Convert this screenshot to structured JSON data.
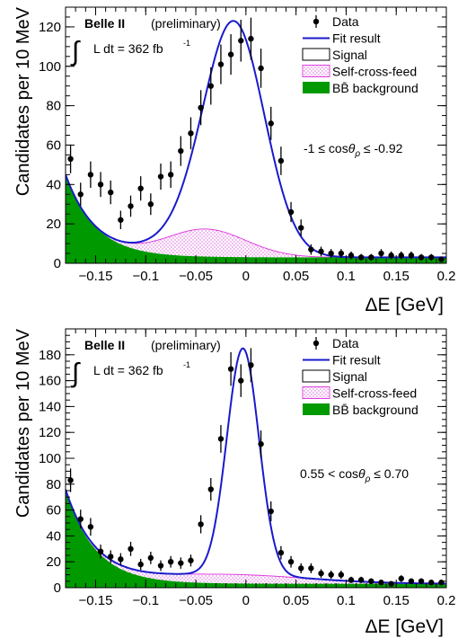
{
  "chart_data": [
    {
      "type": "scatter",
      "experiment": "Belle II",
      "status": "(preliminary)",
      "lumi_prefix": "L dt = 362 fb",
      "lumi_sup": "-1",
      "selection": "-1 ≤ cosθρ ≤ -0.92",
      "selection_parts": {
        "pre": "-1 ≤ cos",
        "theta": "θ",
        "sub": "ρ",
        "post": " ≤ -0.92"
      },
      "xlabel": "ΔE [GeV]",
      "ylabel": "Candidates per 10 MeV",
      "xlim": [
        -0.18,
        0.2
      ],
      "ylim": [
        0,
        130
      ],
      "x_ticks": [
        -0.15,
        -0.1,
        -0.05,
        0,
        0.05,
        0.1,
        0.15,
        0.2
      ],
      "x_tick_labels": [
        "−0.15",
        "−0.1",
        "−0.05",
        "0",
        "0.05",
        "0.1",
        "0.15",
        "0.2"
      ],
      "y_ticks": [
        0,
        20,
        40,
        60,
        80,
        100,
        120
      ],
      "y_tick_labels": [
        "0",
        "20",
        "40",
        "60",
        "80",
        "100",
        "120"
      ],
      "legend": [
        "Data",
        "Fit result",
        "Signal",
        "Self-cross-feed",
        "BB̄ background"
      ],
      "legend_placement": "top-right",
      "colors": {
        "fit": "#1a1acc",
        "scf": "#e040e0",
        "bb": "#009900",
        "data": "#000000"
      },
      "data_points": {
        "x": [
          -0.175,
          -0.165,
          -0.155,
          -0.145,
          -0.135,
          -0.125,
          -0.115,
          -0.105,
          -0.095,
          -0.085,
          -0.075,
          -0.065,
          -0.055,
          -0.045,
          -0.035,
          -0.025,
          -0.015,
          -0.005,
          0.005,
          0.015,
          0.025,
          0.035,
          0.045,
          0.055,
          0.065,
          0.075,
          0.085,
          0.095,
          0.105,
          0.115,
          0.125,
          0.135,
          0.145,
          0.155,
          0.165,
          0.175,
          0.185,
          0.195
        ],
        "y": [
          53,
          35,
          45,
          40,
          36,
          22,
          29,
          38,
          30,
          44,
          45,
          57,
          66,
          79,
          90,
          101,
          106,
          113,
          114,
          99,
          71,
          52,
          26,
          18,
          7,
          6,
          5,
          5,
          4,
          3,
          3,
          5,
          4,
          4,
          4,
          3,
          3,
          2
        ]
      },
      "fit_params": {
        "sig_amp": 109,
        "sig_mu": -0.011,
        "sig_sigma": 0.03,
        "scf_amp": 14,
        "scf_mu": -0.04,
        "scf_sigma": 0.04,
        "bb_amp": 42,
        "bb_decay": 0.03,
        "bb_const": 3
      }
    },
    {
      "type": "scatter",
      "experiment": "Belle II",
      "status": "(preliminary)",
      "lumi_prefix": "L dt = 362 fb",
      "lumi_sup": "-1",
      "selection": "0.55 < cosθρ ≤ 0.70",
      "selection_parts": {
        "pre": "0.55 < cos",
        "theta": "θ",
        "sub": "ρ",
        "post": " ≤ 0.70"
      },
      "xlabel": "ΔE [GeV]",
      "ylabel": "Candidates per 10 MeV",
      "xlim": [
        -0.18,
        0.2
      ],
      "ylim": [
        0,
        200
      ],
      "x_ticks": [
        -0.15,
        -0.1,
        -0.05,
        0,
        0.05,
        0.1,
        0.15,
        0.2
      ],
      "x_tick_labels": [
        "−0.15",
        "−0.1",
        "−0.05",
        "0",
        "0.05",
        "0.1",
        "0.15",
        "0.2"
      ],
      "y_ticks": [
        0,
        20,
        40,
        60,
        80,
        100,
        120,
        140,
        160,
        180
      ],
      "y_tick_labels": [
        "0",
        "20",
        "40",
        "60",
        "80",
        "100",
        "120",
        "140",
        "160",
        "180"
      ],
      "legend": [
        "Data",
        "Fit result",
        "Signal",
        "Self-cross-feed",
        "BB̄ background"
      ],
      "legend_placement": "top-right",
      "colors": {
        "fit": "#1a1acc",
        "scf": "#e040e0",
        "bb": "#009900",
        "data": "#000000"
      },
      "data_points": {
        "x": [
          -0.175,
          -0.165,
          -0.155,
          -0.145,
          -0.135,
          -0.125,
          -0.115,
          -0.105,
          -0.095,
          -0.085,
          -0.075,
          -0.065,
          -0.055,
          -0.045,
          -0.035,
          -0.025,
          -0.015,
          -0.005,
          0.005,
          0.015,
          0.025,
          0.035,
          0.045,
          0.055,
          0.065,
          0.075,
          0.085,
          0.095,
          0.105,
          0.115,
          0.125,
          0.135,
          0.145,
          0.155,
          0.165,
          0.175,
          0.185,
          0.195
        ],
        "y": [
          83,
          53,
          47,
          28,
          24,
          22,
          30,
          18,
          23,
          17,
          20,
          19,
          21,
          49,
          76,
          115,
          169,
          160,
          172,
          111,
          59,
          27,
          20,
          15,
          15,
          11,
          10,
          10,
          6,
          6,
          5,
          4,
          3,
          7,
          5,
          5,
          4,
          4
        ]
      },
      "fit_params": {
        "sig_amp": 175,
        "sig_mu": -0.003,
        "sig_sigma": 0.016,
        "scf_amp": 7,
        "scf_mu": -0.02,
        "scf_sigma": 0.08,
        "bb_amp": 72,
        "bb_decay": 0.03,
        "bb_const": 3
      }
    }
  ]
}
